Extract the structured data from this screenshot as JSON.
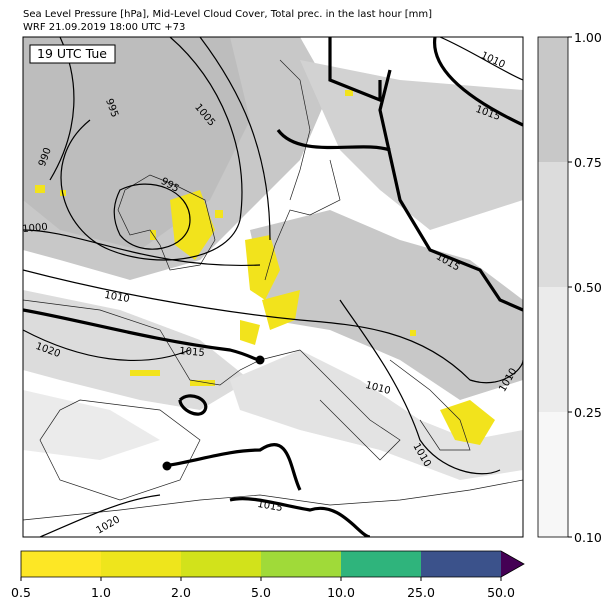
{
  "header": {
    "title": "Sea Level Pressure [hPa], Mid-Level Cloud Cover, Total prec. in the last hour [mm]",
    "subtitle": "WRF 21.09.2019 18:00 UTC +73"
  },
  "map": {
    "time_label": "19 UTC Tue",
    "contour_labels": [
      "995",
      "1005",
      "990",
      "995",
      "1000",
      "1010",
      "1020",
      "1015",
      "1010",
      "1015",
      "1015",
      "1010",
      "1010",
      "1010",
      "1015",
      "1020"
    ]
  },
  "cloud_colorbar": {
    "ticks": [
      "1.00",
      "0.75",
      "0.50",
      "0.25",
      "0.10"
    ]
  },
  "precip_colorbar": {
    "ticks": [
      "0.5",
      "1.0",
      "2.0",
      "5.0",
      "10.0",
      "25.0",
      "50.0"
    ]
  }
}
